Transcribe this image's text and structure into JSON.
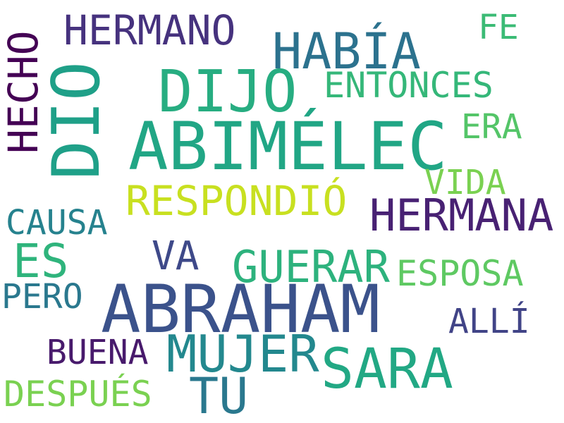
{
  "word_cloud": {
    "background": "#ffffff",
    "words": [
      {
        "key": "abimelec",
        "text": "ABIMÉLEC",
        "color": "#21a685"
      },
      {
        "key": "abraham",
        "text": "ABRAHAM",
        "color": "#3b528b"
      },
      {
        "key": "dio",
        "text": "DIO",
        "color": "#1fa088"
      },
      {
        "key": "dijo",
        "text": "DIJO",
        "color": "#27ad81"
      },
      {
        "key": "sara",
        "text": "SARA",
        "color": "#22a884"
      },
      {
        "key": "mujer",
        "text": "MUJER",
        "color": "#23888e"
      },
      {
        "key": "hermana",
        "text": "HERMANA",
        "color": "#482173"
      },
      {
        "key": "había",
        "text": "HABÍA",
        "color": "#2c728e"
      },
      {
        "key": "guerar",
        "text": "GUERAR",
        "color": "#2db27d"
      },
      {
        "key": "respondió",
        "text": "RESPONDIÓ",
        "color": "#c8e020"
      },
      {
        "key": "hermano",
        "text": "HERMANO",
        "color": "#46327e"
      },
      {
        "key": "tu",
        "text": "TU",
        "color": "#2a788e"
      },
      {
        "key": "es",
        "text": "ES",
        "color": "#2fb47c"
      },
      {
        "key": "hecho",
        "text": "HECHO",
        "color": "#440154"
      },
      {
        "key": "va",
        "text": "VA",
        "color": "#3e4989"
      },
      {
        "key": "entonces",
        "text": "ENTONCES",
        "color": "#35b779"
      },
      {
        "key": "esposa",
        "text": "ESPOSA",
        "color": "#5ec962"
      },
      {
        "key": "despues",
        "text": "DESPUÉS",
        "color": "#7ad151"
      },
      {
        "key": "causa",
        "text": "CAUSA",
        "color": "#26828e"
      },
      {
        "key": "buena",
        "text": "BUENA",
        "color": "#481a6c"
      },
      {
        "key": "vida",
        "text": "VIDA",
        "color": "#7ad151"
      },
      {
        "key": "era",
        "text": "ERA",
        "color": "#54c568"
      },
      {
        "key": "pero",
        "text": "PERO",
        "color": "#2a788e"
      },
      {
        "key": "alli",
        "text": "ALLÍ",
        "color": "#414487"
      },
      {
        "key": "fe",
        "text": "FE",
        "color": "#3bbb75"
      }
    ]
  }
}
